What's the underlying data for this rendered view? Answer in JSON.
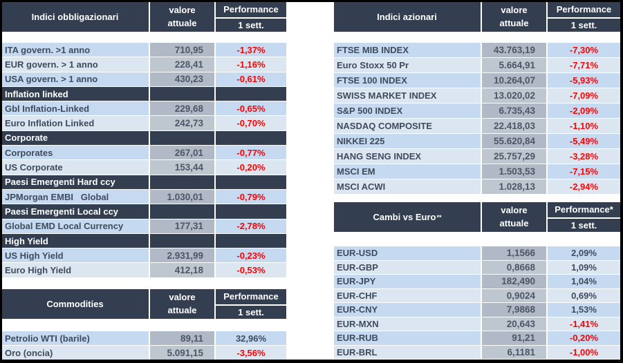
{
  "colors": {
    "header_bg": "#333f50",
    "row_odd": "#c5d9f1",
    "row_even": "#dce6f1",
    "value_odd": "#b0b9c5",
    "value_even": "#bec6d0",
    "negative": "#ff0000",
    "text_dark": "#3e4b5c",
    "value_text": "#4b5666"
  },
  "chart_data": [
    {
      "type": "table",
      "id": "bonds",
      "title": "Indici obbligazionari",
      "title_sup": "",
      "columns": {
        "value_line1": "valore",
        "value_line2": "attuale",
        "perf": "Performance",
        "period": "1 sett."
      },
      "rows": [
        {
          "label": "ITA govern. >1 anno",
          "value": "710,95",
          "perf": "-1,37%"
        },
        {
          "label": "EUR govern. > 1 anno",
          "value": "228,41",
          "perf": "-1,16%"
        },
        {
          "label": "USA govern. > 1 anno",
          "value": "430,23",
          "perf": "-0,61%"
        },
        {
          "section": "Inflation linked"
        },
        {
          "label": "Gbl Inflation-Linked",
          "value": "229,68",
          "perf": "-0,65%"
        },
        {
          "label": "Euro Inflation Linked",
          "value": "242,73",
          "perf": "-0,70%"
        },
        {
          "section": "Corporate"
        },
        {
          "label": "Corporates",
          "value": "267,01",
          "perf": "-0,77%"
        },
        {
          "label": "US Corporate",
          "value": "153,44",
          "perf": "-0,20%"
        },
        {
          "section": "Paesi Emergenti Hard ccy"
        },
        {
          "label": "JPMorgan EMBI   Global",
          "value": "1.030,01",
          "perf": "-0,79%"
        },
        {
          "section": "Paesi Emergenti Local ccy"
        },
        {
          "label": "Global EMD Local Currency",
          "value": "177,31",
          "perf": "-2,78%"
        },
        {
          "section": "High Yield"
        },
        {
          "label": "US High Yield",
          "value": "2.931,99",
          "perf": "-0,23%"
        },
        {
          "label": "Euro High Yield",
          "value": "412,18",
          "perf": "-0,53%"
        }
      ]
    },
    {
      "type": "table",
      "id": "equities",
      "title": "Indici azionari",
      "title_sup": "",
      "columns": {
        "value_line1": "valore",
        "value_line2": "attuale",
        "perf": "Performance",
        "period": "1 sett."
      },
      "rows": [
        {
          "label": "FTSE MIB INDEX",
          "value": "43.763,19",
          "perf": "-7,30%"
        },
        {
          "label": "Euro Stoxx 50 Pr",
          "value": "5.664,91",
          "perf": "-7,71%"
        },
        {
          "label": "FTSE 100 INDEX",
          "value": "10.264,07",
          "perf": "-5,93%"
        },
        {
          "label": "SWISS MARKET INDEX",
          "value": "13.020,02",
          "perf": "-7,09%"
        },
        {
          "label": "S&P 500 INDEX",
          "value": "6.735,43",
          "perf": "-2,09%"
        },
        {
          "label": "NASDAQ COMPOSITE",
          "value": "22.418,03",
          "perf": "-1,10%"
        },
        {
          "label": "NIKKEI 225",
          "value": "55.620,84",
          "perf": "-5,49%"
        },
        {
          "label": "HANG SENG INDEX",
          "value": "25.757,29",
          "perf": "-3,28%"
        },
        {
          "label": "MSCI EM",
          "value": "1.503,53",
          "perf": "-7,15%"
        },
        {
          "label": "MSCI ACWI",
          "value": "1.028,13",
          "perf": "-2,94%"
        }
      ]
    },
    {
      "type": "table",
      "id": "fx",
      "title": "Cambi vs Euro",
      "title_sup": "**",
      "columns": {
        "value_line1": "valore",
        "value_line2": "attuale",
        "perf": "Performance*",
        "period": "1 sett."
      },
      "rows": [
        {
          "label": "EUR-USD",
          "value": "1,1566",
          "perf": "2,09%"
        },
        {
          "label": "EUR-GBP",
          "value": "0,8668",
          "perf": "1,09%"
        },
        {
          "label": "EUR-JPY",
          "value": "182,490",
          "perf": "1,04%"
        },
        {
          "label": "EUR-CHF",
          "value": "0,9024",
          "perf": "0,69%"
        },
        {
          "label": "EUR-CNY",
          "value": "7,9868",
          "perf": "1,53%"
        },
        {
          "label": "EUR-MXN",
          "value": "20,643",
          "perf": "-1,41%"
        },
        {
          "label": "EUR-RUB",
          "value": "91,21",
          "perf": "-0,20%"
        },
        {
          "label": "EUR-BRL",
          "value": "6,1181",
          "perf": "-1,00%"
        }
      ]
    },
    {
      "type": "table",
      "id": "commodities",
      "title": "Commodities",
      "title_sup": "",
      "columns": {
        "value_line1": "valore",
        "value_line2": "attuale",
        "perf": "Performance",
        "period": "1 sett."
      },
      "rows": [
        {
          "label": "Petrolio WTI (barile)",
          "value": "89,11",
          "perf": "32,96%"
        },
        {
          "label": "Oro (oncia)",
          "value": "5.091,15",
          "perf": "-3,56%"
        }
      ]
    }
  ]
}
